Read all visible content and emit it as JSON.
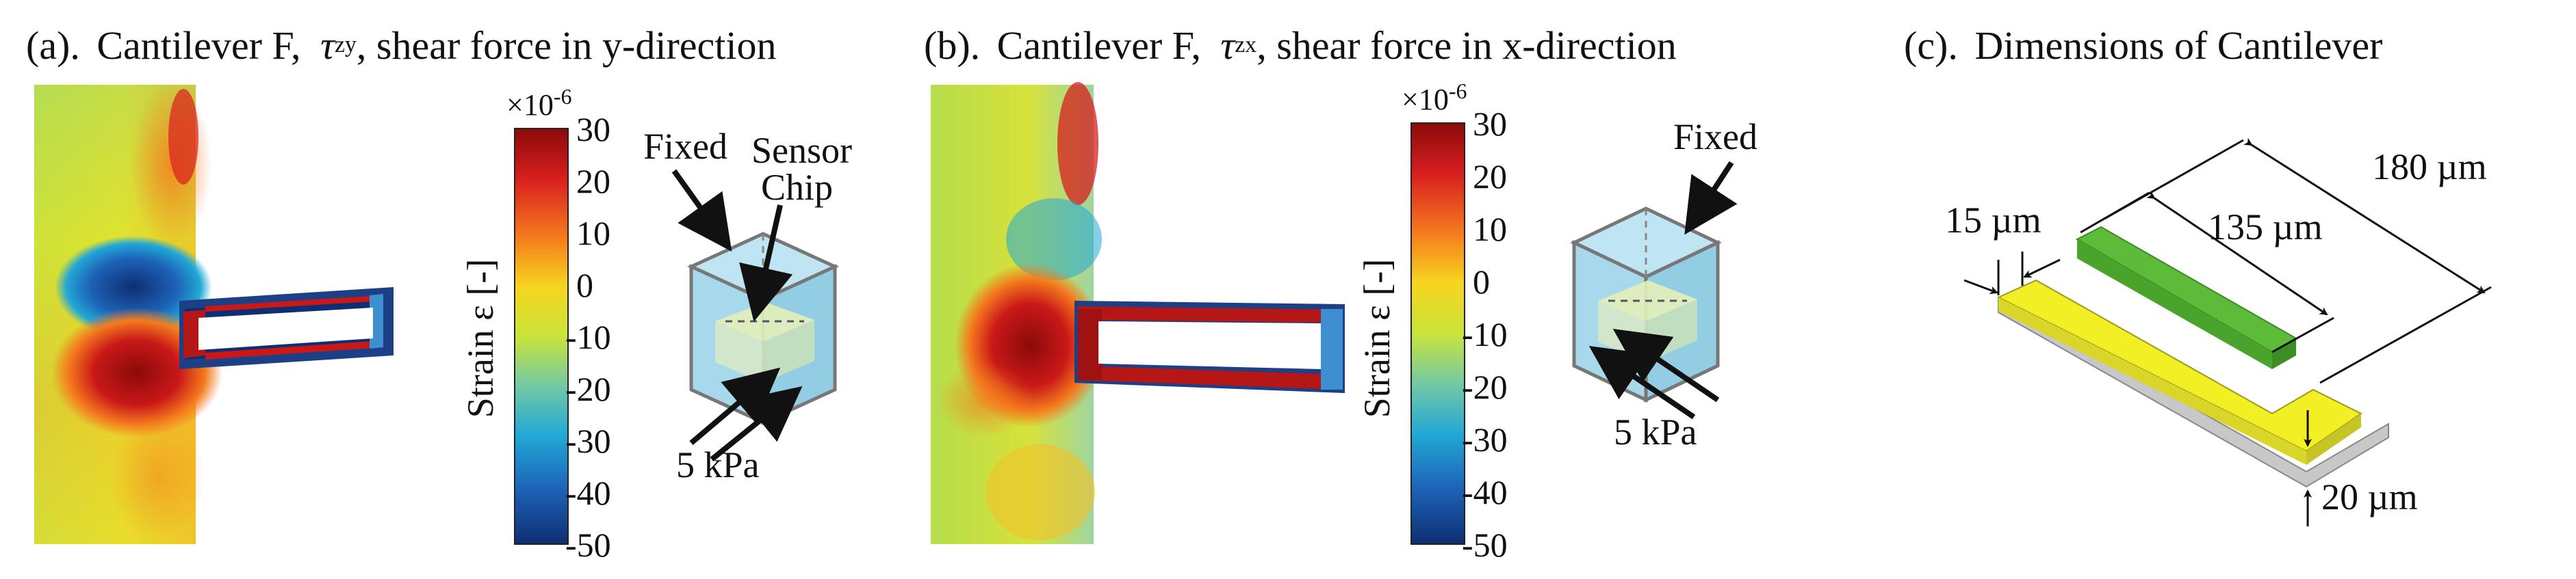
{
  "panels": {
    "a": {
      "prefix": "(a).",
      "title": "Cantilever F,",
      "tau": "τ",
      "tau_sub": "zy",
      "rest": ", shear force in y-direction"
    },
    "b": {
      "prefix": "(b).",
      "title": "Cantilever F,",
      "tau": "τ",
      "tau_sub": "zx",
      "rest": ", shear force in x-direction"
    },
    "c": {
      "prefix": "(c).",
      "title": "Dimensions of Cantilever"
    }
  },
  "colorbar": {
    "label": "Strain ε [-]",
    "multiplier": "×10",
    "exponent": "-6",
    "ticks": [
      "30",
      "20",
      "10",
      "0",
      "-10",
      "-20",
      "-30",
      "-40",
      "-50"
    ],
    "colors": [
      "#8b0a0a",
      "#d81e1e",
      "#f47a1d",
      "#f7d51f",
      "#c9e43a",
      "#72c9a4",
      "#22a7d6",
      "#1d62b7",
      "#0e2e72"
    ]
  },
  "annotations": {
    "fixed": "Fixed",
    "sensor_line1": "Sensor",
    "sensor_line2": "Chip",
    "pressure_a": "5 kPa",
    "pressure_b": "5 kPa",
    "fixed_b": "Fixed"
  },
  "dimensions": {
    "length_total": "180 µm",
    "length_inner": "135 µm",
    "width": "15 µm",
    "thickness": "20 µm"
  },
  "colors": {
    "beam_yellow": "#f2ef24",
    "beam_green": "#5dbb3a",
    "substrate_gray": "#c8c8c8",
    "cube_blue": "#a7d8ec"
  }
}
